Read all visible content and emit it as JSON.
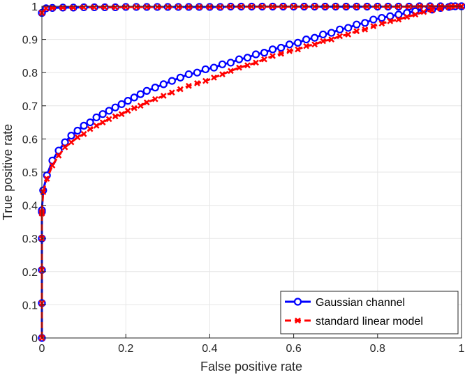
{
  "chart_data": {
    "type": "line",
    "title": "",
    "xlabel": "False positive rate",
    "ylabel": "True positive rate",
    "xlim": [
      0,
      1
    ],
    "ylim": [
      0,
      1
    ],
    "xticks": [
      "0",
      "0.2",
      "0.4",
      "0.6",
      "0.8",
      "1"
    ],
    "yticks": [
      "0",
      "0.1",
      "0.2",
      "0.3",
      "0.4",
      "0.5",
      "0.6",
      "0.7",
      "0.8",
      "0.9",
      "1"
    ],
    "grid": true,
    "legend_position": "bottom-right",
    "series": [
      {
        "name": "Gaussian channel",
        "color": "#0000ff",
        "line_style": "solid",
        "marker": "circle",
        "x": [
          0,
          0,
          0,
          0,
          0,
          0,
          0.003,
          0.012,
          0.025,
          0.04,
          0.055,
          0.07,
          0.085,
          0.1,
          0.115,
          0.13,
          0.145,
          0.16,
          0.175,
          0.19,
          0.205,
          0.22,
          0.235,
          0.25,
          0.27,
          0.29,
          0.31,
          0.33,
          0.35,
          0.37,
          0.39,
          0.41,
          0.43,
          0.45,
          0.47,
          0.49,
          0.51,
          0.53,
          0.55,
          0.57,
          0.59,
          0.61,
          0.63,
          0.65,
          0.67,
          0.69,
          0.71,
          0.73,
          0.75,
          0.77,
          0.79,
          0.81,
          0.83,
          0.85,
          0.87,
          0.89,
          0.91,
          0.93,
          0.95,
          0.97,
          0.985,
          1.0
        ],
        "y": [
          0,
          0.105,
          0.205,
          0.3,
          0.38,
          0.385,
          0.445,
          0.49,
          0.535,
          0.565,
          0.59,
          0.61,
          0.625,
          0.64,
          0.65,
          0.665,
          0.675,
          0.685,
          0.695,
          0.705,
          0.715,
          0.725,
          0.735,
          0.745,
          0.755,
          0.765,
          0.775,
          0.785,
          0.795,
          0.8,
          0.81,
          0.815,
          0.825,
          0.83,
          0.84,
          0.845,
          0.855,
          0.86,
          0.87,
          0.875,
          0.885,
          0.89,
          0.9,
          0.905,
          0.915,
          0.92,
          0.93,
          0.935,
          0.945,
          0.95,
          0.96,
          0.965,
          0.97,
          0.975,
          0.98,
          0.985,
          0.99,
          0.99,
          0.995,
          0.998,
          1.0,
          1.0
        ]
      },
      {
        "name": "Gaussian channel",
        "color": "#0000ff",
        "line_style": "solid",
        "marker": "circle",
        "x": [
          0,
          0,
          0.01,
          0.025,
          0.05,
          0.075,
          0.1,
          0.125,
          0.15,
          0.175,
          0.2,
          0.225,
          0.25,
          0.275,
          0.3,
          0.325,
          0.35,
          0.375,
          0.4,
          0.425,
          0.45,
          0.475,
          0.5,
          0.525,
          0.55,
          0.575,
          0.6,
          0.625,
          0.65,
          0.675,
          0.7,
          0.725,
          0.75,
          0.775,
          0.8,
          0.825,
          0.85,
          0.875,
          0.9,
          0.925,
          0.95,
          0.975,
          1.0
        ],
        "y": [
          0.98,
          0.98,
          0.994,
          0.995,
          0.996,
          0.996,
          0.997,
          0.997,
          0.997,
          0.997,
          0.998,
          0.998,
          0.998,
          0.998,
          0.998,
          0.998,
          0.998,
          0.998,
          0.998,
          0.998,
          0.999,
          0.999,
          0.999,
          0.999,
          0.999,
          0.999,
          0.999,
          0.999,
          0.999,
          0.999,
          0.999,
          0.999,
          0.999,
          0.999,
          0.999,
          0.999,
          0.999,
          0.999,
          1.0,
          1.0,
          1.0,
          1.0,
          1.0
        ]
      },
      {
        "name": "standard linear model",
        "color": "#ff0000",
        "line_style": "dashed",
        "marker": "x",
        "x": [
          0,
          0,
          0,
          0,
          0,
          0,
          0.003,
          0.012,
          0.025,
          0.04,
          0.055,
          0.07,
          0.085,
          0.1,
          0.115,
          0.13,
          0.145,
          0.16,
          0.175,
          0.19,
          0.205,
          0.22,
          0.235,
          0.25,
          0.27,
          0.29,
          0.31,
          0.33,
          0.35,
          0.37,
          0.39,
          0.41,
          0.43,
          0.45,
          0.47,
          0.49,
          0.51,
          0.53,
          0.55,
          0.57,
          0.59,
          0.61,
          0.63,
          0.65,
          0.67,
          0.69,
          0.71,
          0.73,
          0.75,
          0.77,
          0.79,
          0.81,
          0.83,
          0.85,
          0.87,
          0.89,
          0.91,
          0.93,
          0.95,
          0.97,
          0.985,
          1.0
        ],
        "y": [
          0,
          0.105,
          0.205,
          0.3,
          0.375,
          0.38,
          0.44,
          0.48,
          0.52,
          0.55,
          0.575,
          0.59,
          0.605,
          0.615,
          0.63,
          0.64,
          0.65,
          0.66,
          0.668,
          0.675,
          0.685,
          0.693,
          0.7,
          0.71,
          0.72,
          0.73,
          0.74,
          0.75,
          0.76,
          0.768,
          0.775,
          0.785,
          0.795,
          0.805,
          0.815,
          0.822,
          0.83,
          0.84,
          0.85,
          0.857,
          0.865,
          0.87,
          0.88,
          0.885,
          0.895,
          0.9,
          0.91,
          0.915,
          0.925,
          0.93,
          0.94,
          0.948,
          0.955,
          0.96,
          0.968,
          0.975,
          0.983,
          0.988,
          0.993,
          0.997,
          1.0,
          1.0
        ]
      },
      {
        "name": "standard linear model",
        "color": "#ff0000",
        "line_style": "dashed",
        "marker": "x",
        "x": [
          0,
          0,
          0.01,
          0.025,
          0.05,
          0.075,
          0.1,
          0.125,
          0.15,
          0.175,
          0.2,
          0.225,
          0.25,
          0.275,
          0.3,
          0.325,
          0.35,
          0.375,
          0.4,
          0.425,
          0.45,
          0.475,
          0.5,
          0.525,
          0.55,
          0.575,
          0.6,
          0.625,
          0.65,
          0.675,
          0.7,
          0.725,
          0.75,
          0.775,
          0.8,
          0.825,
          0.85,
          0.875,
          0.9,
          0.925,
          0.95,
          0.975,
          1.0
        ],
        "y": [
          0.98,
          0.98,
          0.994,
          0.995,
          0.996,
          0.996,
          0.997,
          0.997,
          0.997,
          0.997,
          0.998,
          0.998,
          0.998,
          0.998,
          0.998,
          0.998,
          0.998,
          0.998,
          0.998,
          0.998,
          0.999,
          0.999,
          0.999,
          0.999,
          0.999,
          0.999,
          0.999,
          0.999,
          0.999,
          0.999,
          0.999,
          0.999,
          0.999,
          0.999,
          0.999,
          0.999,
          0.999,
          0.999,
          1.0,
          1.0,
          1.0,
          1.0,
          1.0
        ]
      }
    ],
    "legend": [
      {
        "label": "Gaussian channel",
        "color": "#0000ff",
        "line_style": "solid",
        "marker": "circle"
      },
      {
        "label": "standard linear model",
        "color": "#ff0000",
        "line_style": "dashed",
        "marker": "x"
      }
    ]
  }
}
